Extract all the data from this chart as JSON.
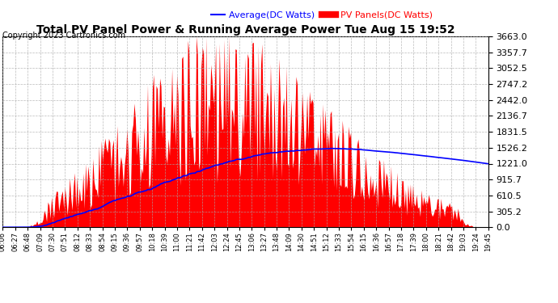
{
  "title": "Total PV Panel Power & Running Average Power Tue Aug 15 19:52",
  "copyright": "Copyright 2023 Cartronics.com",
  "legend_average": "Average(DC Watts)",
  "legend_pv": "PV Panels(DC Watts)",
  "legend_average_color": "blue",
  "legend_pv_color": "red",
  "background_color": "#ffffff",
  "grid_color": "#aaaaaa",
  "yticks": [
    0.0,
    305.2,
    610.5,
    915.7,
    1221.0,
    1526.2,
    1831.5,
    2136.7,
    2442.0,
    2747.2,
    3052.5,
    3357.7,
    3663.0
  ],
  "xtick_labels": [
    "06:06",
    "06:27",
    "06:48",
    "07:09",
    "07:30",
    "07:51",
    "08:12",
    "08:33",
    "08:54",
    "09:15",
    "09:36",
    "09:57",
    "10:18",
    "10:39",
    "11:00",
    "11:21",
    "11:42",
    "12:03",
    "12:24",
    "12:45",
    "13:06",
    "13:27",
    "13:48",
    "14:09",
    "14:30",
    "14:51",
    "15:12",
    "15:33",
    "15:54",
    "16:15",
    "16:36",
    "16:57",
    "17:18",
    "17:39",
    "18:00",
    "18:21",
    "18:42",
    "19:03",
    "19:24",
    "19:45"
  ],
  "pv_fill_color": "red",
  "average_line_color": "blue",
  "ymax": 3663.0,
  "ymin": 0.0,
  "title_fontsize": 10,
  "copyright_fontsize": 7,
  "legend_fontsize": 8,
  "ytick_fontsize": 8,
  "xtick_fontsize": 6
}
